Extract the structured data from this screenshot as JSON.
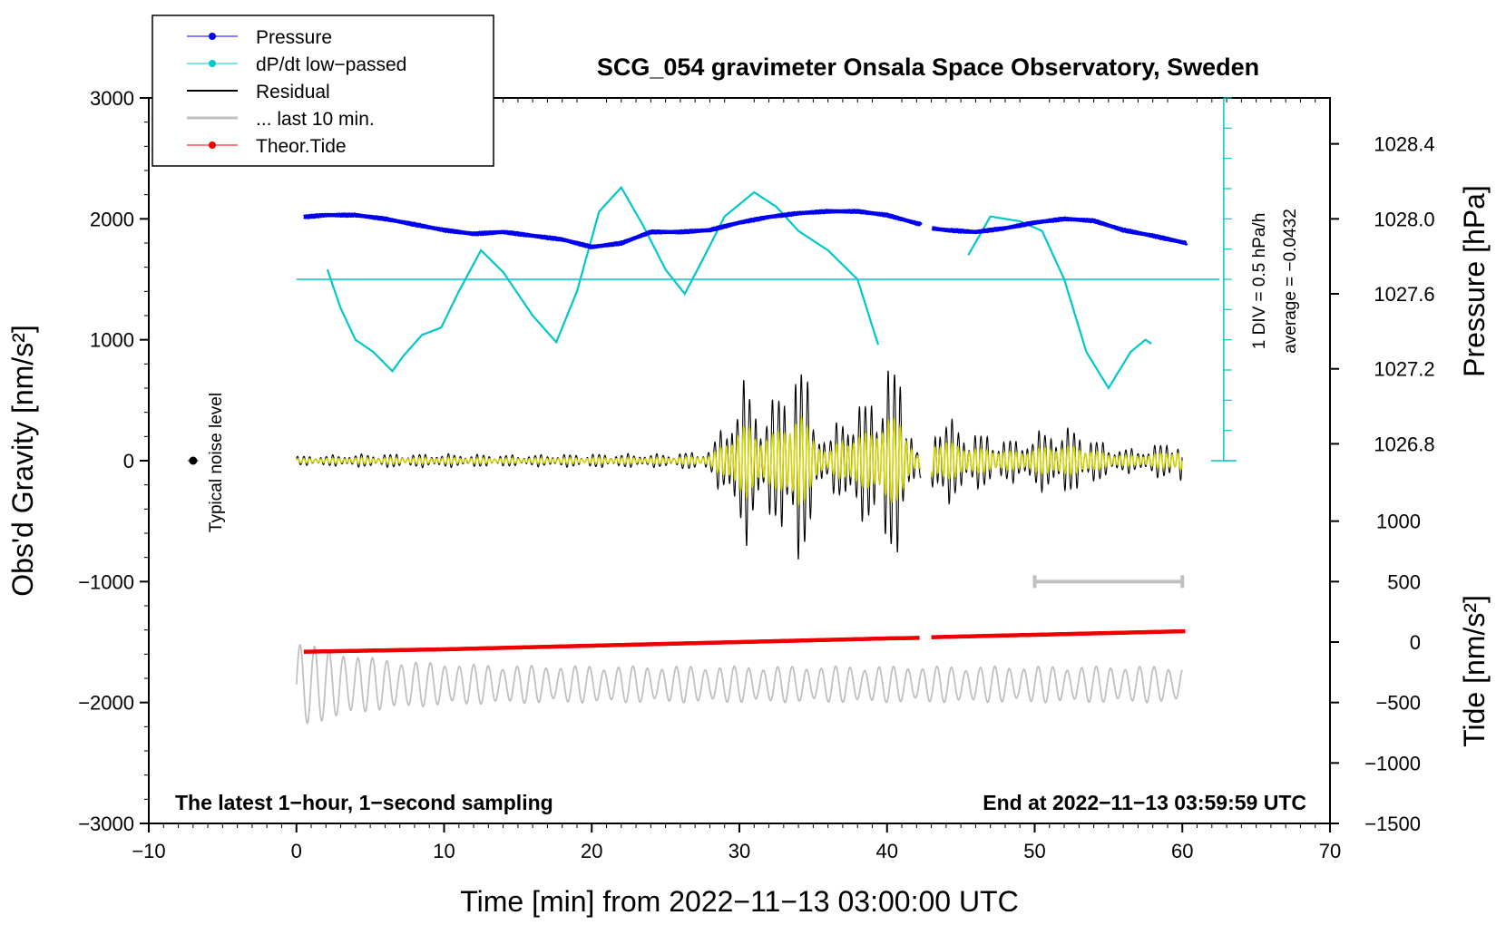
{
  "chart_data": {
    "type": "line",
    "title": "SCG_054 gravimeter Onsala Space Observatory, Sweden",
    "xlabel": "Time [min] from 2022−11−13 03:00:00 UTC",
    "ylabel_left": "Obs'd Gravity [nm/s²]",
    "ylabel_right_top": "Pressure [hPa]",
    "ylabel_right_bottom": "Tide [nm/s²]",
    "xlim": [
      -10,
      70
    ],
    "ylim": [
      -3000,
      3000
    ],
    "x_ticks": [
      -10,
      0,
      10,
      20,
      30,
      40,
      50,
      60,
      70
    ],
    "x_tick_labels": [
      "−10",
      "0",
      "10",
      "20",
      "30",
      "40",
      "50",
      "60",
      "70"
    ],
    "y_ticks": [
      -3000,
      -2000,
      -1000,
      0,
      1000,
      2000,
      3000
    ],
    "y_tick_labels": [
      "−3000",
      "−2000",
      "−1000",
      "0",
      "1000",
      "2000",
      "3000"
    ],
    "pressure_axis": {
      "ticks": [
        1026.8,
        1027.2,
        1027.6,
        1028.0,
        1028.4
      ],
      "tick_labels": [
        "1026.8",
        "1027.2",
        "1027.6",
        "1028.0",
        "1028.4"
      ],
      "ref_value": 1028.0,
      "ref_gravity": 2000,
      "units_per_100_gravity": 0.0645
    },
    "tide_axis": {
      "ticks": [
        -1500,
        -1000,
        -500,
        0,
        500,
        1000
      ],
      "tick_labels": [
        "−1500",
        "−1000",
        "−500",
        "0",
        "500",
        "1000"
      ],
      "gravity_at_0": -1500,
      "scale": 1.0
    },
    "series": [
      {
        "name": "Pressure",
        "color": "#0000ee",
        "units": "hPa",
        "x": [
          0.5,
          2,
          4,
          6,
          8,
          10,
          12,
          14,
          16,
          18,
          20,
          22,
          24,
          26,
          28,
          30,
          32,
          34,
          36,
          38,
          40,
          42.3,
          43,
          44,
          46,
          48,
          50,
          52,
          54,
          56,
          58,
          60.3
        ],
        "values": [
          1028.01,
          1028.02,
          1028.02,
          1028.0,
          1027.97,
          1027.94,
          1027.92,
          1027.93,
          1027.91,
          1027.89,
          1027.85,
          1027.87,
          1027.93,
          1027.93,
          1027.94,
          1027.98,
          1028.01,
          1028.03,
          1028.04,
          1028.04,
          1028.02,
          1027.97,
          1027.95,
          1027.94,
          1027.93,
          1027.95,
          1027.98,
          1028.0,
          1027.99,
          1027.94,
          1027.91,
          1027.87
        ]
      },
      {
        "name": "dP/dt low−passed",
        "color": "#00c8c8",
        "units": "hPa/h",
        "scale_note": "1 DIV = 0.5 hPa/h",
        "average_label": "average = −0.0432",
        "zero_line_gravity": 1500,
        "segments": [
          {
            "x": [
              2.1,
              3,
              4,
              5.2,
              6.5,
              7.2,
              8.5,
              9.8,
              11,
              12.5,
              14,
              16,
              17.6,
              19,
              20.5,
              22,
              23.5,
              25,
              26.3,
              27.5,
              29,
              31,
              32.5,
              34,
              36,
              38,
              39.5
            ],
            "values": [
              0.04,
              -0.12,
              -0.25,
              -0.3,
              -0.38,
              -0.32,
              -0.23,
              -0.2,
              -0.05,
              0.12,
              0.03,
              -0.15,
              -0.26,
              -0.05,
              0.28,
              0.38,
              0.22,
              0.04,
              -0.06,
              0.08,
              0.26,
              0.36,
              0.3,
              0.2,
              0.12,
              0.0,
              -0.29
            ]
          },
          {
            "x": [
              45.5,
              47,
              49,
              50.5,
              52,
              53.5,
              55,
              56.5,
              57.5,
              58
            ],
            "values": [
              0.1,
              0.26,
              0.24,
              0.2,
              0.0,
              -0.3,
              -0.45,
              -0.3,
              -0.25,
              -0.27
            ]
          }
        ]
      },
      {
        "name": "Residual",
        "color": "#000000",
        "units": "nm/s²",
        "envelope_x": [
          0,
          5,
          10,
          15,
          20,
          25,
          28,
          29.5,
          30.5,
          31.5,
          32.5,
          33.5,
          34,
          35,
          36,
          37,
          38,
          39,
          40,
          41,
          42,
          43,
          44,
          45,
          47,
          49,
          51,
          53,
          55,
          57,
          59,
          60
        ],
        "envelope_amplitude": [
          40,
          60,
          60,
          50,
          60,
          60,
          90,
          500,
          740,
          470,
          560,
          880,
          1000,
          500,
          150,
          480,
          480,
          620,
          860,
          820,
          80,
          420,
          400,
          300,
          220,
          180,
          300,
          280,
          130,
          100,
          170,
          230
        ],
        "gaps": [
          [
            42.3,
            43.0
          ]
        ]
      },
      {
        "name": "... last 10 min.",
        "color": "#c0c0c0",
        "units": "nm/s²",
        "x_range": [
          0,
          60
        ],
        "center_gravity": -1850,
        "scale_bar_x": [
          50,
          60
        ],
        "scale_bar_gravity": -1000
      },
      {
        "name": "Theor.Tide",
        "color": "#ee0000",
        "units": "nm/s²",
        "x": [
          0.5,
          10,
          20,
          30,
          40,
          42.3,
          43,
          50,
          60.3
        ],
        "values": [
          -80,
          -60,
          -30,
          0,
          30,
          35,
          40,
          60,
          90
        ]
      }
    ],
    "yellow_trace_color": "#d4d400",
    "noise_marker": {
      "x": -7,
      "gravity": 0,
      "label": "Typical noise level"
    },
    "legend_position": "top-left",
    "footer_left": "The latest 1−hour, 1−second sampling",
    "footer_right": "End at 2022−11−13 03:59:59 UTC"
  }
}
